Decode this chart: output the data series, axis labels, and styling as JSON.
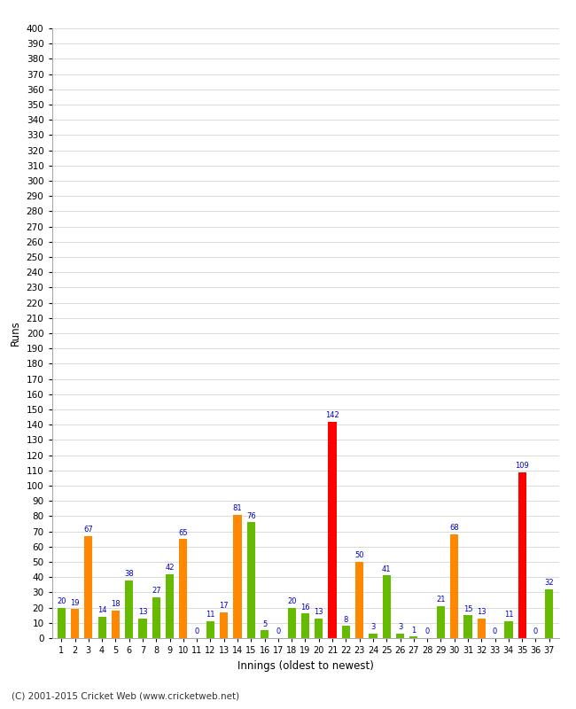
{
  "xlabel": "Innings (oldest to newest)",
  "ylabel": "Runs",
  "innings_labels": [
    "1",
    "2",
    "3",
    "4",
    "5",
    "6",
    "7",
    "8",
    "9",
    "10",
    "11",
    "12",
    "13",
    "14",
    "15",
    "16",
    "17",
    "18",
    "19",
    "20",
    "21",
    "22",
    "23",
    "24",
    "25",
    "26",
    "27",
    "28",
    "29",
    "30",
    "31",
    "32",
    "33",
    "34",
    "35",
    "36",
    "37"
  ],
  "values": [
    20,
    19,
    67,
    14,
    18,
    38,
    13,
    27,
    42,
    65,
    0,
    11,
    17,
    81,
    76,
    5,
    0,
    20,
    16,
    13,
    142,
    8,
    50,
    3,
    41,
    3,
    1,
    0,
    21,
    68,
    15,
    13,
    0,
    11,
    109,
    0,
    32
  ],
  "colors": [
    "#66bb00",
    "#ff8800",
    "#ff8800",
    "#66bb00",
    "#ff8800",
    "#66bb00",
    "#66bb00",
    "#66bb00",
    "#66bb00",
    "#ff8800",
    "#66bb00",
    "#66bb00",
    "#ff8800",
    "#ff8800",
    "#66bb00",
    "#66bb00",
    "#ff8800",
    "#66bb00",
    "#66bb00",
    "#66bb00",
    "#ff0000",
    "#66bb00",
    "#ff8800",
    "#66bb00",
    "#66bb00",
    "#66bb00",
    "#66bb00",
    "#ff8800",
    "#66bb00",
    "#ff8800",
    "#66bb00",
    "#ff8800",
    "#66bb00",
    "#66bb00",
    "#ff0000",
    "#ff8800",
    "#66bb00"
  ],
  "ylim": [
    0,
    400
  ],
  "yticks": [
    0,
    10,
    20,
    30,
    40,
    50,
    60,
    70,
    80,
    90,
    100,
    110,
    120,
    130,
    140,
    150,
    160,
    170,
    180,
    190,
    200,
    210,
    220,
    230,
    240,
    250,
    260,
    270,
    280,
    290,
    300,
    310,
    320,
    330,
    340,
    350,
    360,
    370,
    380,
    390,
    400
  ],
  "background_color": "#ffffff",
  "grid_color": "#cccccc",
  "label_color": "#0000cc",
  "figsize": [
    6.5,
    8.0
  ],
  "dpi": 100,
  "footer": "(C) 2001-2015 Cricket Web (www.cricketweb.net)"
}
